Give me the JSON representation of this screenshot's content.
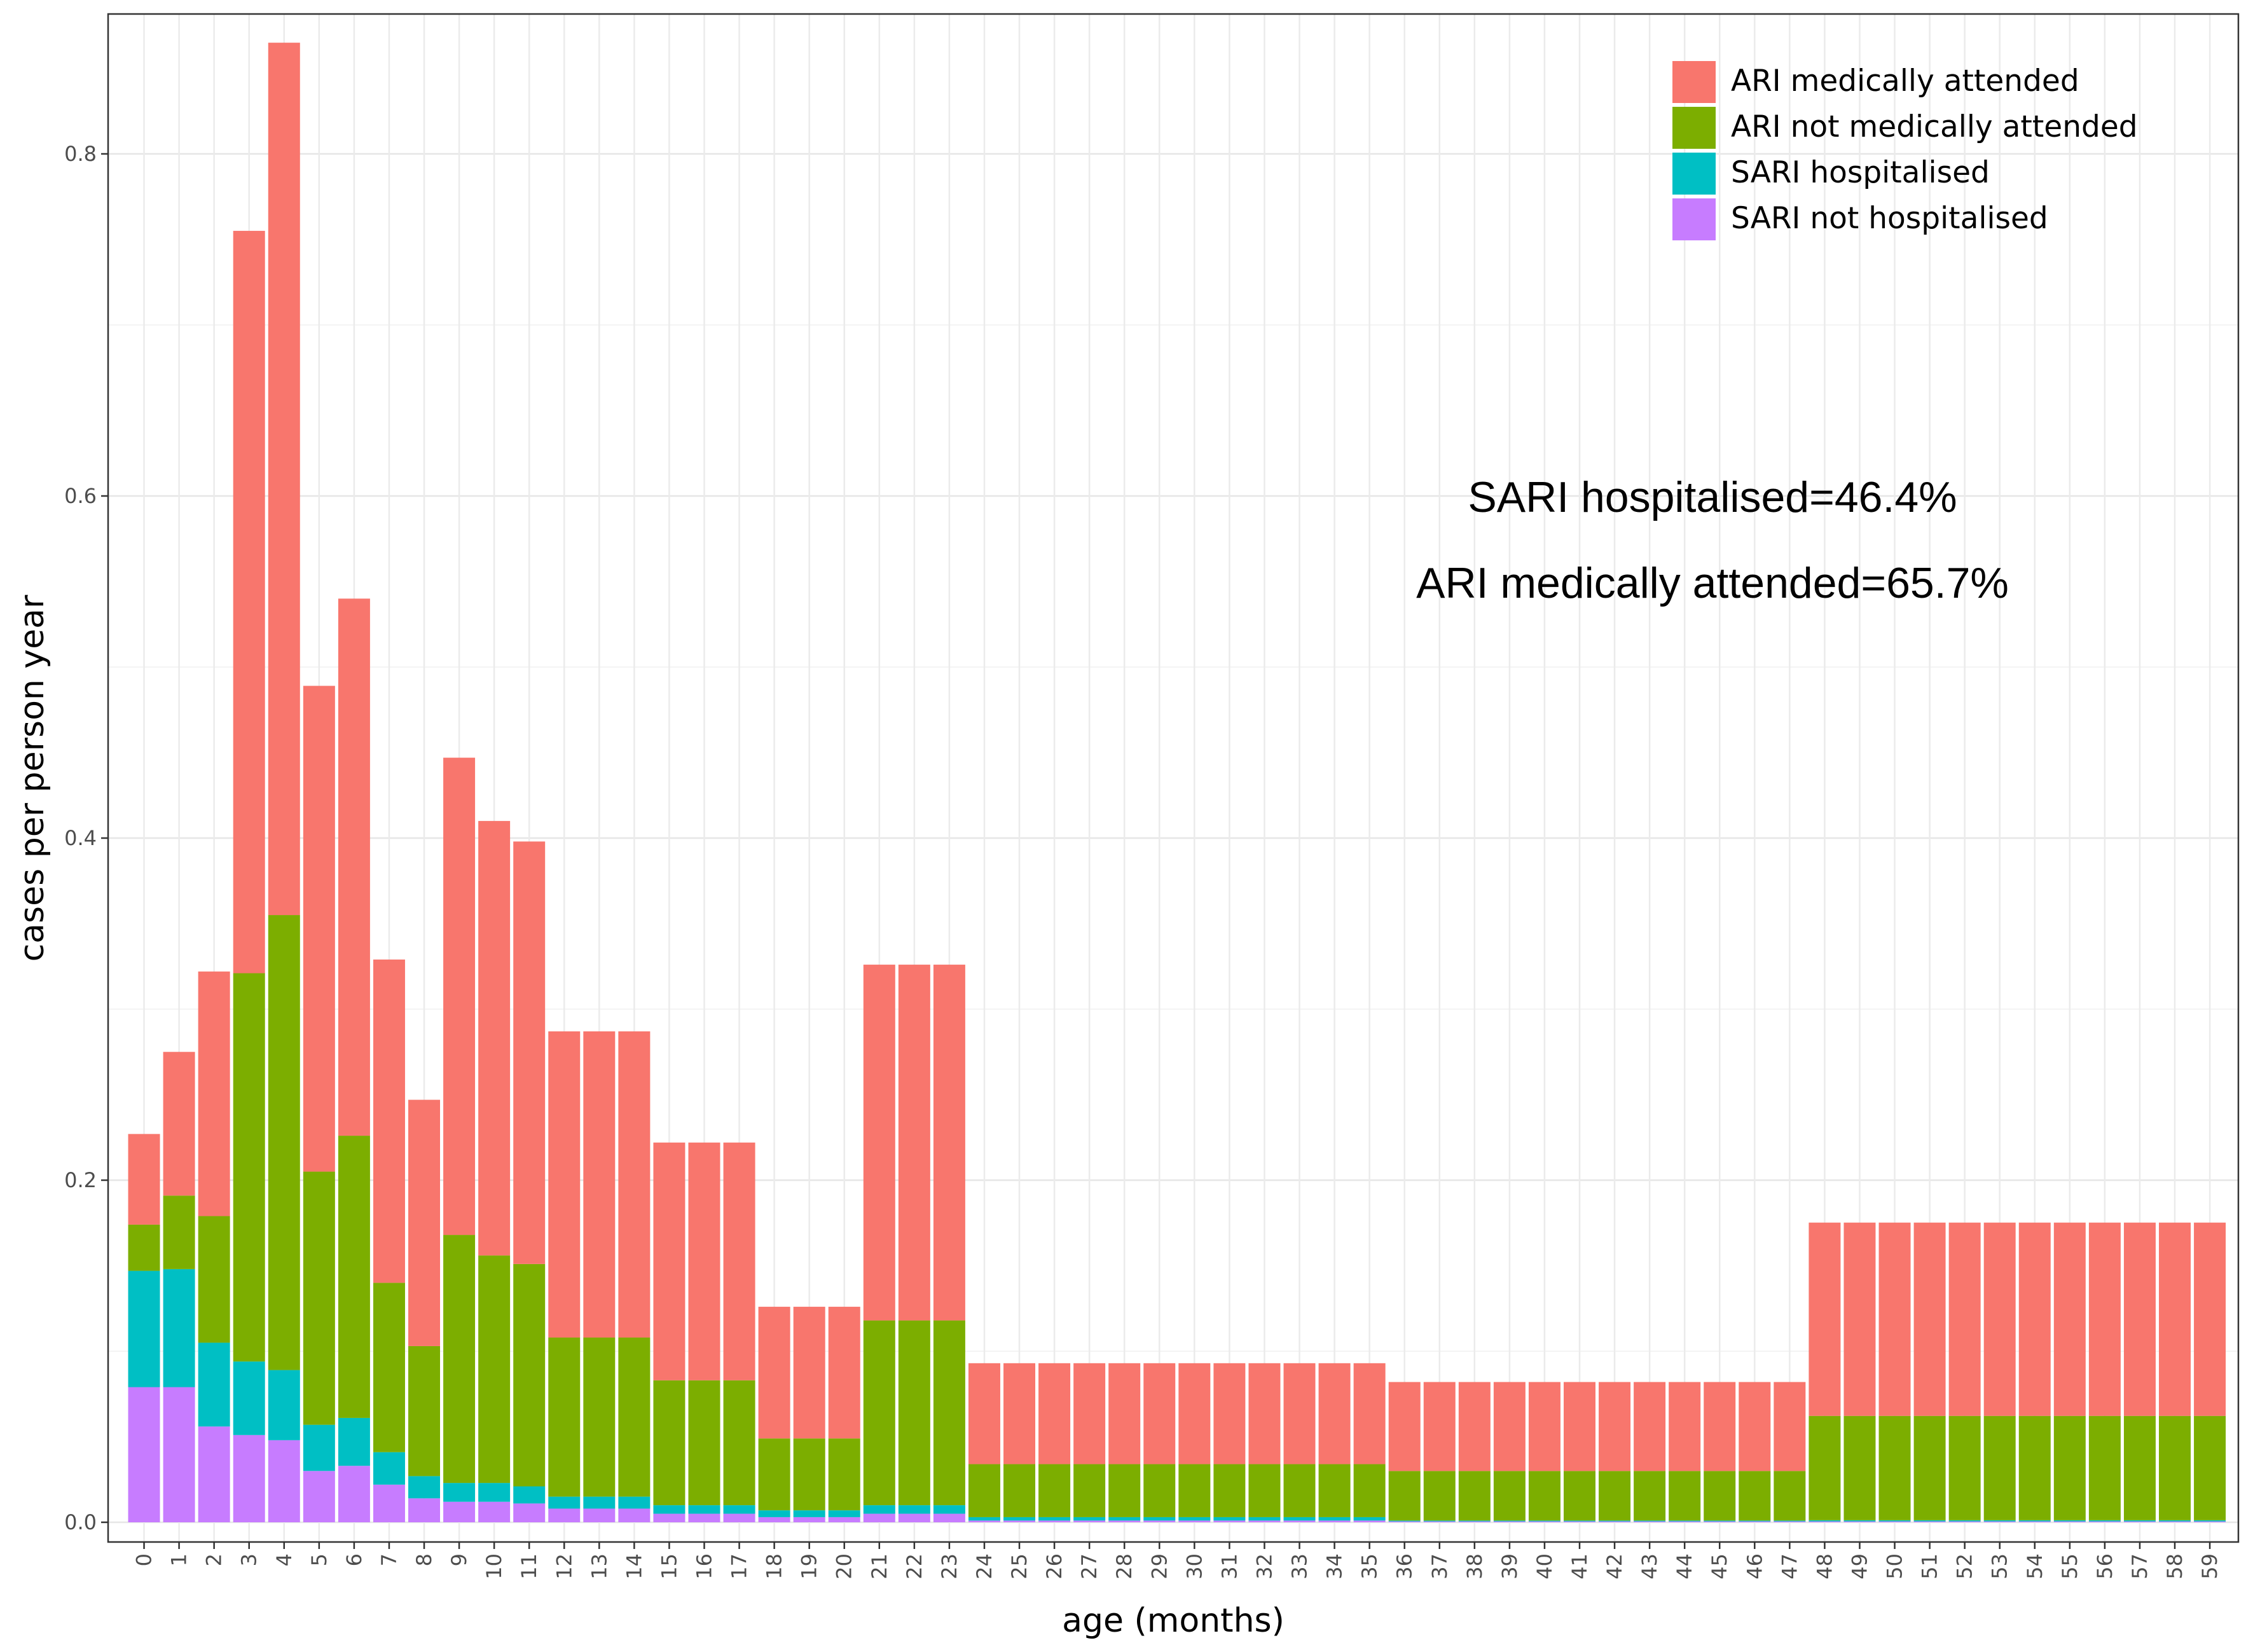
{
  "chart_data": {
    "type": "bar",
    "stacked": true,
    "xlabel": "age (months)",
    "ylabel": "cases per person year",
    "ylim": [
      0,
      0.87
    ],
    "yticks": [
      0.0,
      0.2,
      0.4,
      0.6,
      0.8
    ],
    "ytick_labels": [
      "0.0",
      "0.2",
      "0.4",
      "0.6",
      "0.8"
    ],
    "grid": true,
    "legend_position": "top-right",
    "categories": [
      "0",
      "1",
      "2",
      "3",
      "4",
      "5",
      "6",
      "7",
      "8",
      "9",
      "10",
      "11",
      "12",
      "13",
      "14",
      "15",
      "16",
      "17",
      "18",
      "19",
      "20",
      "21",
      "22",
      "23",
      "24",
      "25",
      "26",
      "27",
      "28",
      "29",
      "30",
      "31",
      "32",
      "33",
      "34",
      "35",
      "36",
      "37",
      "38",
      "39",
      "40",
      "41",
      "42",
      "43",
      "44",
      "45",
      "46",
      "47",
      "48",
      "49",
      "50",
      "51",
      "52",
      "53",
      "54",
      "55",
      "56",
      "57",
      "58",
      "59"
    ],
    "series": [
      {
        "name": "SARI not hospitalised",
        "color": "#C77CFF",
        "values": [
          0.079,
          0.079,
          0.056,
          0.051,
          0.048,
          0.03,
          0.033,
          0.022,
          0.014,
          0.012,
          0.012,
          0.011,
          0.008,
          0.008,
          0.008,
          0.005,
          0.005,
          0.005,
          0.003,
          0.003,
          0.003,
          0.005,
          0.005,
          0.005,
          0.001,
          0.001,
          0.001,
          0.001,
          0.001,
          0.001,
          0.001,
          0.001,
          0.001,
          0.001,
          0.001,
          0.001,
          0.0005,
          0.0005,
          0.0005,
          0.0005,
          0.0005,
          0.0005,
          0.0005,
          0.0005,
          0.0005,
          0.0005,
          0.0005,
          0.0005,
          0.0005,
          0.0005,
          0.0005,
          0.0005,
          0.0005,
          0.0005,
          0.0005,
          0.0005,
          0.0005,
          0.0005,
          0.0005,
          0.0005
        ]
      },
      {
        "name": "SARI hospitalised",
        "color": "#00BFC4",
        "values": [
          0.068,
          0.069,
          0.049,
          0.043,
          0.041,
          0.027,
          0.028,
          0.019,
          0.013,
          0.011,
          0.011,
          0.01,
          0.007,
          0.007,
          0.007,
          0.005,
          0.005,
          0.005,
          0.004,
          0.004,
          0.004,
          0.005,
          0.005,
          0.005,
          0.002,
          0.002,
          0.002,
          0.002,
          0.002,
          0.002,
          0.002,
          0.002,
          0.002,
          0.002,
          0.002,
          0.002,
          0.0005,
          0.0005,
          0.0005,
          0.0005,
          0.0005,
          0.0005,
          0.0005,
          0.0005,
          0.0005,
          0.0005,
          0.0005,
          0.0005,
          0.0007,
          0.0007,
          0.0007,
          0.0007,
          0.0007,
          0.0007,
          0.0007,
          0.0007,
          0.0007,
          0.0007,
          0.0007,
          0.0007
        ]
      },
      {
        "name": "ARI not medically attended",
        "color": "#7CAE00",
        "values": [
          0.027,
          0.043,
          0.074,
          0.227,
          0.266,
          0.148,
          0.165,
          0.099,
          0.076,
          0.145,
          0.133,
          0.13,
          0.093,
          0.093,
          0.093,
          0.073,
          0.073,
          0.073,
          0.042,
          0.042,
          0.042,
          0.108,
          0.108,
          0.108,
          0.031,
          0.031,
          0.031,
          0.031,
          0.031,
          0.031,
          0.031,
          0.031,
          0.031,
          0.031,
          0.031,
          0.031,
          0.029,
          0.029,
          0.029,
          0.029,
          0.029,
          0.029,
          0.029,
          0.029,
          0.029,
          0.029,
          0.029,
          0.029,
          0.061,
          0.061,
          0.061,
          0.061,
          0.061,
          0.061,
          0.061,
          0.061,
          0.061,
          0.061,
          0.061,
          0.061
        ]
      },
      {
        "name": "ARI medically attended",
        "color": "#F8766D",
        "values": [
          0.053,
          0.084,
          0.143,
          0.434,
          0.51,
          0.284,
          0.314,
          0.189,
          0.144,
          0.279,
          0.254,
          0.247,
          0.179,
          0.179,
          0.179,
          0.139,
          0.139,
          0.139,
          0.077,
          0.077,
          0.077,
          0.208,
          0.208,
          0.208,
          0.059,
          0.059,
          0.059,
          0.059,
          0.059,
          0.059,
          0.059,
          0.059,
          0.059,
          0.059,
          0.059,
          0.059,
          0.052,
          0.052,
          0.052,
          0.052,
          0.052,
          0.052,
          0.052,
          0.052,
          0.052,
          0.052,
          0.052,
          0.052,
          0.113,
          0.113,
          0.113,
          0.113,
          0.113,
          0.113,
          0.113,
          0.113,
          0.113,
          0.113,
          0.113,
          0.113
        ]
      }
    ],
    "legend": [
      "ARI medically attended",
      "ARI not medically attended",
      "SARI hospitalised",
      "SARI not hospitalised"
    ],
    "annotations": [
      "SARI hospitalised=46.4%",
      "ARI medically attended=65.7%"
    ]
  }
}
